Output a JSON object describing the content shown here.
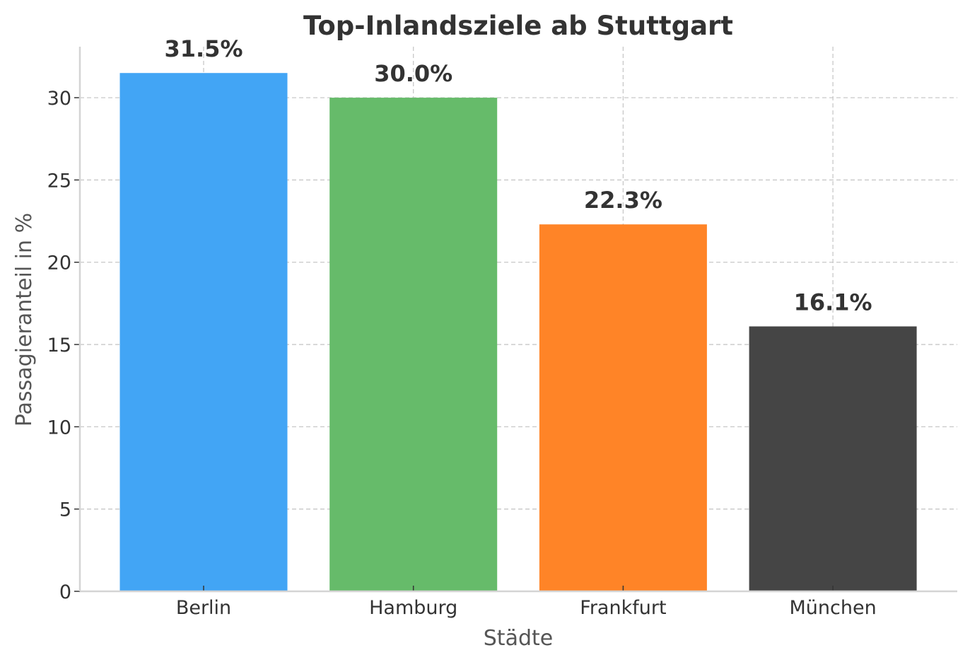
{
  "chart_data": {
    "type": "bar",
    "title": "Top-Inlandsziele ab Stuttgart",
    "xlabel": "Städte",
    "ylabel": "Passagieranteil in %",
    "categories": [
      "Berlin",
      "Hamburg",
      "Frankfurt",
      "München"
    ],
    "values": [
      31.5,
      30.0,
      22.3,
      16.1
    ],
    "value_labels": [
      "31.5%",
      "30.0%",
      "22.3%",
      "16.1%"
    ],
    "colors": [
      "#42A5F5",
      "#66BB6A",
      "#FF8427",
      "#454545"
    ],
    "yticks": [
      0,
      5,
      10,
      15,
      20,
      25,
      30
    ],
    "ylim": [
      0,
      33.1
    ],
    "grid": true,
    "legend": "none"
  }
}
